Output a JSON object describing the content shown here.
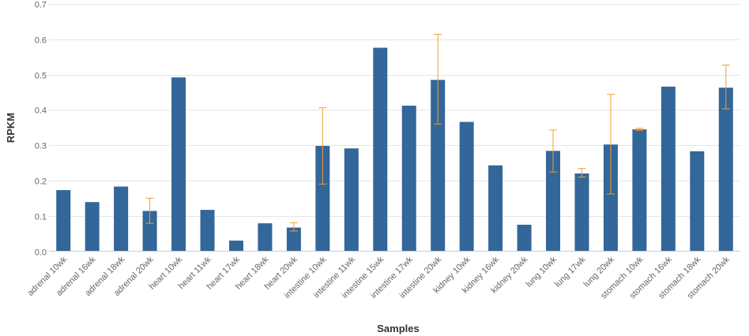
{
  "chart_data": {
    "type": "bar",
    "xlabel": "Samples",
    "ylabel": "RPKM",
    "ylim": [
      0,
      0.7
    ],
    "yticks": [
      "0.0",
      "0.1",
      "0.2",
      "0.3",
      "0.4",
      "0.5",
      "0.6",
      "0.7"
    ],
    "grid": true,
    "colors": {
      "bar": "#336699",
      "error_bar": "#f0a030",
      "grid": "#e6e6e6",
      "axis": "#cccccc"
    },
    "categories": [
      "adrenal 10wk",
      "adrenal 16wk",
      "adrenal 18wk",
      "adrenal 20wk",
      "heart 10wk",
      "heart 11wk",
      "heart 17wk",
      "heart 18wk",
      "heart 20wk",
      "intestine 10wk",
      "intestine 11wk",
      "intestine 15wk",
      "intestine 17wk",
      "intestine 20wk",
      "kidney 10wk",
      "kidney 16wk",
      "kidney 20wk",
      "lung 10wk",
      "lung 17wk",
      "lung 20wk",
      "stomach 10wk",
      "stomach 16wk",
      "stomach 18wk",
      "stomach 20wk"
    ],
    "values": [
      0.173,
      0.139,
      0.183,
      0.114,
      0.492,
      0.117,
      0.03,
      0.079,
      0.067,
      0.298,
      0.291,
      0.576,
      0.412,
      0.485,
      0.366,
      0.243,
      0.075,
      0.284,
      0.22,
      0.302,
      0.345,
      0.466,
      0.283,
      0.463
    ],
    "error_bars": [
      null,
      null,
      null,
      [
        0.079,
        0.15
      ],
      null,
      null,
      null,
      null,
      [
        0.057,
        0.081
      ],
      [
        0.19,
        0.406
      ],
      null,
      null,
      null,
      [
        0.36,
        0.614
      ],
      null,
      null,
      null,
      [
        0.224,
        0.343
      ],
      [
        0.21,
        0.234
      ],
      [
        0.162,
        0.444
      ],
      [
        0.342,
        0.348
      ],
      null,
      null,
      [
        0.403,
        0.527
      ]
    ]
  }
}
